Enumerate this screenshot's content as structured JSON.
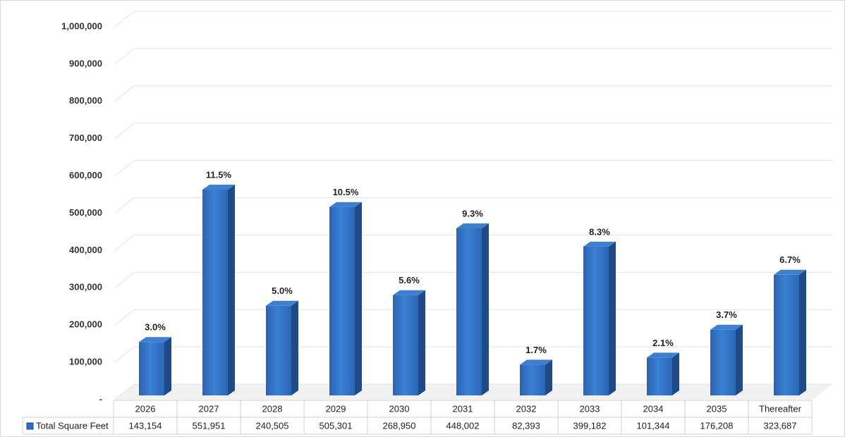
{
  "chart_data": {
    "type": "bar3d",
    "categories": [
      "2026",
      "2027",
      "2028",
      "2029",
      "2030",
      "2031",
      "2032",
      "2033",
      "2034",
      "2035",
      "Thereafter"
    ],
    "series": [
      {
        "name": "Total Square Feet",
        "color": "#2f6fc0",
        "values": [
          143154,
          551951,
          240505,
          505301,
          268950,
          448002,
          82393,
          399182,
          101344,
          176208,
          323687
        ],
        "value_labels": [
          "143,154",
          "551,951",
          "240,505",
          "505,301",
          "268,950",
          "448,002",
          "82,393",
          "399,182",
          "101,344",
          "176,208",
          "323,687"
        ]
      }
    ],
    "bar_labels": [
      "3.0%",
      "11.5%",
      "5.0%",
      "10.5%",
      "5.6%",
      "9.3%",
      "1.7%",
      "8.3%",
      "2.1%",
      "3.7%",
      "6.7%"
    ],
    "ylim": [
      0,
      1000000
    ],
    "yticks": [
      {
        "value": 0,
        "label": "-"
      },
      {
        "value": 100000,
        "label": "100,000"
      },
      {
        "value": 200000,
        "label": "200,000"
      },
      {
        "value": 300000,
        "label": "300,000"
      },
      {
        "value": 400000,
        "label": "400,000"
      },
      {
        "value": 500000,
        "label": "500,000"
      },
      {
        "value": 600000,
        "label": "600,000"
      },
      {
        "value": 700000,
        "label": "700,000"
      },
      {
        "value": 800000,
        "label": "800,000"
      },
      {
        "value": 900000,
        "label": "900,000"
      },
      {
        "value": 1000000,
        "label": "1,000,000"
      }
    ],
    "grid": true
  }
}
